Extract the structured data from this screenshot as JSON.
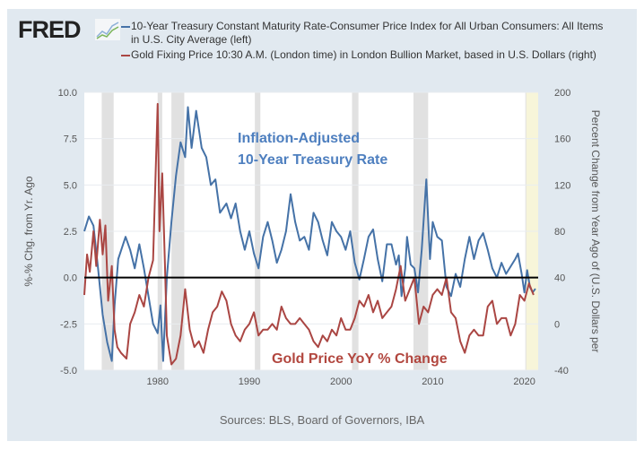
{
  "header": {
    "logo": "FRED",
    "logo_icon": "line-chart-icon"
  },
  "legend": [
    {
      "label": "10-Year Treasury Constant Maturity Rate-Consumer Price Index for All Urban Consumers: All Items in U.S. City Average (left)",
      "color": "#4572a7"
    },
    {
      "label": "Gold Fixing Price 10:30 A.M. (London time) in London Bullion Market, based in U.S. Dollars (right)",
      "color": "#aa4643"
    }
  ],
  "source": "Sources: BLS, Board of Governors, IBA",
  "chart_data": {
    "type": "line",
    "ylabel": "%-% Chg. from Yr. Ago",
    "ylabel_right": "Percent Change from Year Ago of (U.S. Dollars per",
    "xlim": [
      1972,
      2021.5
    ],
    "ylim": [
      -5,
      10
    ],
    "ylim_right": [
      -40,
      200
    ],
    "x_ticks": [
      "1980",
      "1990",
      "2000",
      "2010",
      "2020"
    ],
    "y_ticks": [
      "-5.0",
      "-2.5",
      "0.0",
      "2.5",
      "5.0",
      "7.5",
      "10.0"
    ],
    "y_ticks_right": [
      "-40",
      "0",
      "40",
      "80",
      "120",
      "160",
      "200"
    ],
    "annotations": [
      "Inflation-Adjusted",
      "10-Year Treasury Rate",
      "Gold Price YoY % Change"
    ],
    "recessions": [
      [
        1973.9,
        1975.2
      ],
      [
        1980.0,
        1980.5
      ],
      [
        1981.5,
        1982.9
      ],
      [
        1990.6,
        1991.2
      ],
      [
        2001.2,
        2001.9
      ],
      [
        2007.9,
        2009.5
      ],
      [
        2020.1,
        2020.4
      ]
    ],
    "highlight": [
      2020.2,
      2021.5
    ],
    "series": [
      {
        "name": "10-Year Treasury Constant Maturity Rate-Consumer Price Index (left)",
        "axis": "left",
        "x": [
          1972,
          1972.5,
          1973,
          1973.5,
          1974,
          1974.5,
          1975,
          1975.3,
          1975.7,
          1976.5,
          1977,
          1977.5,
          1978,
          1978.5,
          1979,
          1979.5,
          1980,
          1980.3,
          1980.6,
          1981,
          1981.5,
          1982,
          1982.5,
          1983,
          1983.3,
          1983.7,
          1984.2,
          1984.8,
          1985.3,
          1985.8,
          1986.3,
          1986.8,
          1987.5,
          1988,
          1988.5,
          1989,
          1989.5,
          1990,
          1990.5,
          1991,
          1991.5,
          1992,
          1992.5,
          1993,
          1993.5,
          1994,
          1994.5,
          1995,
          1995.5,
          1996,
          1996.5,
          1997,
          1997.5,
          1998,
          1998.5,
          1999,
          1999.5,
          2000,
          2000.5,
          2001,
          2001.5,
          2002,
          2002.5,
          2003,
          2003.5,
          2004,
          2004.5,
          2005,
          2005.5,
          2006,
          2006.3,
          2006.6,
          2007,
          2007.2,
          2007.6,
          2008,
          2008.4,
          2008.8,
          2009.3,
          2009.7,
          2010,
          2010.5,
          2011,
          2011.5,
          2012,
          2012.5,
          2013,
          2013.5,
          2014,
          2014.5,
          2015,
          2015.5,
          2016,
          2016.5,
          2017,
          2017.5,
          2018,
          2018.5,
          2019,
          2019.3,
          2019.7,
          2020,
          2020.3,
          2020.6,
          2020.9,
          2021.2
        ],
        "y": [
          2.5,
          3.3,
          2.8,
          0.5,
          -2,
          -3.5,
          -4.5,
          -1.5,
          1,
          2.2,
          1.5,
          0.5,
          1.8,
          0.5,
          -1,
          -2.5,
          -3,
          -1.5,
          -4.5,
          0,
          3,
          5.5,
          7.3,
          6.5,
          9.2,
          7,
          9,
          7,
          6.5,
          5,
          5.3,
          3.5,
          4,
          3.2,
          4,
          2.5,
          1.5,
          2.5,
          1.3,
          0.5,
          2.2,
          3,
          2,
          0.8,
          1.5,
          2.5,
          4.5,
          3,
          2,
          2.2,
          1.5,
          3.5,
          3,
          2,
          1.2,
          3,
          2.5,
          2.2,
          1.5,
          2.5,
          0.8,
          -0.1,
          1,
          2.2,
          2.6,
          1,
          -0.2,
          1.8,
          1.8,
          0.7,
          1.2,
          -1,
          0.5,
          2.2,
          0.7,
          0.5,
          -0.8,
          1.5,
          5.3,
          1,
          3,
          2.2,
          2,
          -0.5,
          -1,
          0.2,
          -0.5,
          1,
          2.2,
          1,
          2,
          2.4,
          1.5,
          0.5,
          0,
          0.8,
          0.2,
          0.6,
          1,
          1.3,
          0.2,
          -0.8,
          0.4,
          -0.5,
          -0.8,
          -0.6
        ],
        "color": "#4572a7"
      },
      {
        "name": "Gold Fixing Price YoY % Change (right)",
        "axis": "right",
        "x": [
          1972,
          1972.3,
          1972.6,
          1973,
          1973.3,
          1973.7,
          1974,
          1974.3,
          1974.6,
          1975,
          1975.3,
          1975.6,
          1976,
          1976.6,
          1977,
          1977.5,
          1978,
          1978.5,
          1979,
          1979.5,
          1980,
          1980.2,
          1980.5,
          1980.8,
          1981,
          1981.5,
          1982,
          1982.5,
          1983,
          1983.5,
          1984,
          1984.5,
          1985,
          1985.5,
          1986,
          1986.5,
          1987,
          1987.5,
          1988,
          1988.5,
          1989,
          1989.5,
          1990,
          1990.5,
          1991,
          1991.5,
          1992,
          1992.5,
          1993,
          1993.5,
          1994,
          1994.5,
          1995,
          1995.5,
          1996,
          1996.5,
          1997,
          1997.5,
          1998,
          1998.5,
          1999,
          1999.5,
          2000,
          2000.5,
          2001,
          2001.5,
          2002,
          2002.5,
          2003,
          2003.5,
          2004,
          2004.5,
          2005,
          2005.5,
          2006,
          2006.5,
          2007,
          2007.5,
          2008,
          2008.5,
          2009,
          2009.5,
          2010,
          2010.5,
          2011,
          2011.5,
          2012,
          2012.5,
          2013,
          2013.5,
          2014,
          2014.5,
          2015,
          2015.5,
          2016,
          2016.5,
          2017,
          2017.5,
          2018,
          2018.5,
          2019,
          2019.5,
          2020,
          2020.5,
          2021
        ],
        "y": [
          25,
          60,
          45,
          80,
          50,
          90,
          60,
          85,
          20,
          50,
          -5,
          -20,
          -25,
          -30,
          0,
          10,
          25,
          15,
          40,
          55,
          190,
          80,
          130,
          50,
          -10,
          -35,
          -30,
          -10,
          30,
          -5,
          -20,
          -15,
          -25,
          -5,
          10,
          15,
          28,
          20,
          0,
          -10,
          -15,
          -5,
          0,
          10,
          -10,
          -5,
          -5,
          0,
          -5,
          15,
          5,
          0,
          0,
          5,
          0,
          -5,
          -15,
          -20,
          -10,
          -15,
          -5,
          -10,
          5,
          -5,
          -5,
          5,
          20,
          15,
          25,
          10,
          20,
          5,
          10,
          15,
          30,
          50,
          20,
          30,
          40,
          0,
          15,
          10,
          25,
          30,
          25,
          40,
          10,
          5,
          -15,
          -25,
          -10,
          -5,
          -10,
          -10,
          15,
          20,
          0,
          5,
          5,
          -10,
          0,
          25,
          20,
          35,
          25
        ],
        "color": "#aa4643"
      }
    ]
  }
}
